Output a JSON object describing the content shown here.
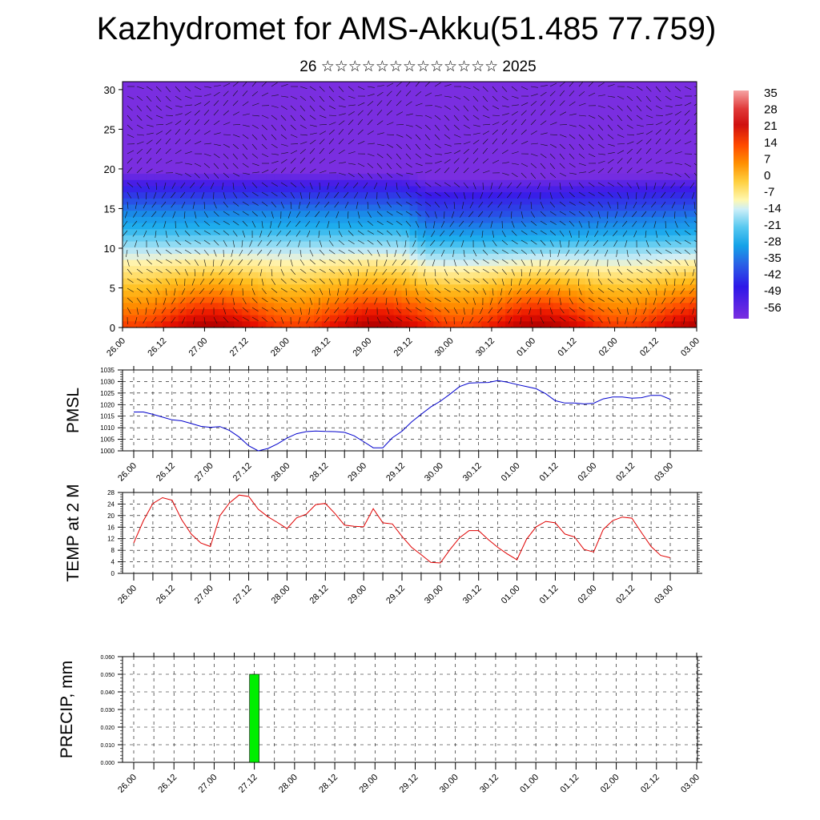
{
  "title": "Kazhydromet for AMS-Akku(51.485 77.759)",
  "subtitle": "26 ☆☆☆☆☆☆☆☆☆☆☆☆☆ 2025",
  "time_ticks": [
    "26.00",
    "26.12",
    "27.00",
    "27.12",
    "28.00",
    "28.12",
    "29.00",
    "29.12",
    "30.00",
    "30.12",
    "01.00",
    "01.12",
    "02.00",
    "02.12",
    "03.00"
  ],
  "colorbar_labels": [
    "35",
    "28",
    "21",
    "14",
    "7",
    "0",
    "-7",
    "-14",
    "-21",
    "-28",
    "-35",
    "-42",
    "-49",
    "-56"
  ],
  "colors": {
    "pmsl_line": "#0000cc",
    "temp_line": "#e00000",
    "precip_bar": "#00ee00"
  },
  "chart_data": [
    {
      "type": "heatmap",
      "title": "",
      "xlabel": "",
      "ylabel": "",
      "ylim": [
        0,
        31
      ],
      "yticks": [
        "0",
        "5",
        "10",
        "15",
        "20",
        "25",
        "30"
      ],
      "x": [
        "26.00",
        "26.12",
        "27.00",
        "27.12",
        "28.00",
        "28.12",
        "29.00",
        "29.12",
        "30.00",
        "30.12",
        "01.00",
        "01.12",
        "02.00",
        "02.12",
        "03.00"
      ],
      "colorbar_range": [
        -60,
        38
      ],
      "overlay": "wind barbs"
    },
    {
      "type": "line",
      "ylabel": "PMSL",
      "ylim": [
        1000,
        1035
      ],
      "yticks": [
        "1000",
        "1005",
        "1010",
        "1015",
        "1020",
        "1025",
        "1030",
        "1035"
      ],
      "x": [
        0,
        1,
        2,
        3,
        4,
        5,
        6,
        7,
        8,
        9,
        10,
        11,
        12,
        13,
        14,
        15,
        16,
        17,
        18,
        19,
        20,
        21,
        22,
        23,
        24,
        25,
        26,
        27,
        28,
        29,
        30,
        31,
        32,
        33,
        34,
        35,
        36,
        37,
        38,
        39,
        40,
        41,
        42,
        43,
        44,
        45,
        46,
        47,
        48,
        49,
        50,
        51,
        52,
        53,
        54,
        55,
        56
      ],
      "values": [
        1016.8,
        1016.8,
        1015.8,
        1014.6,
        1013.4,
        1013.0,
        1011.8,
        1010.6,
        1010.2,
        1010.5,
        1008.8,
        1006.0,
        1002.2,
        1000.0,
        1001.0,
        1003.0,
        1005.5,
        1007.4,
        1008.3,
        1008.6,
        1008.4,
        1008.3,
        1008.0,
        1006.5,
        1004.0,
        1001.3,
        1001.3,
        1005.7,
        1008.5,
        1012.5,
        1015.8,
        1019.0,
        1021.5,
        1024.5,
        1027.8,
        1029.3,
        1029.5,
        1029.6,
        1030.4,
        1029.7,
        1028.7,
        1027.8,
        1026.9,
        1024.7,
        1021.7,
        1020.7,
        1020.7,
        1020.3,
        1020.6,
        1022.5,
        1023.3,
        1023.3,
        1022.8,
        1023.0,
        1024.0,
        1024.0,
        1022.3
      ]
    },
    {
      "type": "line",
      "ylabel": "TEMP at 2 M",
      "ylim": [
        0,
        28
      ],
      "yticks": [
        "0",
        "4",
        "8",
        "12",
        "16",
        "20",
        "24",
        "28"
      ],
      "x": [
        0,
        1,
        2,
        3,
        4,
        5,
        6,
        7,
        8,
        9,
        10,
        11,
        12,
        13,
        14,
        15,
        16,
        17,
        18,
        19,
        20,
        21,
        22,
        23,
        24,
        25,
        26,
        27,
        28,
        29,
        30,
        31,
        32,
        33,
        34,
        35,
        36,
        37,
        38,
        39,
        40,
        41,
        42,
        43,
        44,
        45,
        46,
        47,
        48,
        49,
        50,
        51,
        52,
        53,
        54,
        55,
        56
      ],
      "values": [
        10.5,
        18.2,
        24.2,
        26.2,
        25.3,
        18.6,
        13.6,
        10.5,
        9.3,
        20.0,
        24.4,
        27.1,
        26.6,
        22.2,
        19.6,
        17.6,
        15.5,
        19.2,
        20.5,
        23.8,
        24.2,
        20.7,
        16.7,
        16.3,
        16.1,
        22.4,
        17.5,
        17.1,
        12.8,
        9.0,
        6.5,
        3.8,
        3.6,
        8.2,
        12.3,
        14.8,
        14.8,
        11.7,
        9.0,
        6.7,
        4.7,
        11.8,
        16.1,
        18.0,
        17.5,
        13.6,
        12.6,
        8.3,
        7.4,
        15.2,
        18.3,
        19.5,
        19.1,
        14.1,
        9.3,
        6.2,
        5.4
      ]
    },
    {
      "type": "bar",
      "ylabel": "PRECIP, mm",
      "ylim": [
        0,
        0.06
      ],
      "yticks": [
        "0.000",
        "0.010",
        "0.020",
        "0.030",
        "0.040",
        "0.050",
        "0.060"
      ],
      "categories": [
        "27.12"
      ],
      "values": [
        0.05
      ]
    }
  ]
}
